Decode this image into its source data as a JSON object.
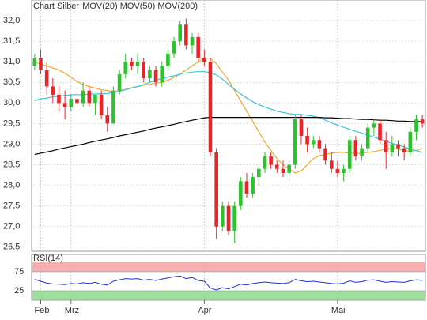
{
  "chart_data": [
    {
      "type": "candlestick",
      "title": "Chart Silber",
      "categories": [
        null,
        "Feb",
        null,
        null,
        null,
        null,
        "Mrz",
        null,
        null,
        null,
        null,
        null,
        null,
        null,
        null,
        null,
        null,
        null,
        null,
        null,
        null,
        null,
        null,
        null,
        null,
        null,
        null,
        null,
        "Apr",
        null,
        null,
        null,
        null,
        null,
        null,
        null,
        null,
        null,
        null,
        null,
        null,
        null,
        null,
        null,
        null,
        null,
        null,
        null,
        null,
        null,
        "Mai",
        null,
        null,
        null,
        null,
        null,
        null,
        null,
        null,
        null,
        null,
        null,
        null,
        null,
        null
      ],
      "open": [
        30.9,
        31.1,
        30.8,
        30.4,
        30.2,
        30.0,
        29.9,
        30.1,
        30.0,
        30.3,
        30.0,
        30.2,
        29.7,
        29.5,
        30.3,
        30.7,
        31.0,
        30.9,
        31.0,
        30.6,
        30.8,
        30.5,
        30.9,
        31.2,
        31.5,
        31.9,
        31.4,
        31.6,
        31.1,
        31.0,
        28.8,
        27.0,
        27.5,
        26.9,
        27.5,
        28.1,
        27.8,
        28.2,
        28.4,
        28.7,
        28.5,
        28.4,
        28.3,
        28.5,
        29.6,
        29.2,
        29.0,
        29.1,
        28.9,
        28.6,
        28.4,
        28.3,
        28.4,
        29.1,
        28.7,
        28.9,
        29.4,
        29.5,
        29.1,
        28.8,
        29.0,
        28.9,
        28.8,
        29.3,
        29.6
      ],
      "high": [
        31.2,
        31.3,
        31.0,
        30.6,
        30.4,
        30.3,
        30.2,
        30.3,
        30.5,
        30.4,
        30.2,
        30.3,
        29.9,
        30.4,
        30.8,
        31.2,
        31.1,
        31.2,
        31.1,
        30.9,
        30.9,
        31.0,
        31.3,
        31.6,
        32.0,
        32.05,
        31.7,
        31.7,
        31.3,
        31.1,
        28.9,
        27.6,
        27.6,
        27.6,
        28.2,
        28.3,
        28.3,
        28.5,
        28.8,
        28.8,
        28.6,
        28.6,
        28.6,
        29.7,
        29.7,
        29.4,
        29.2,
        29.2,
        29.0,
        28.8,
        28.6,
        28.5,
        29.2,
        29.2,
        29.0,
        29.5,
        29.6,
        29.6,
        29.3,
        29.2,
        29.1,
        29.0,
        29.4,
        29.7,
        29.7
      ],
      "low": [
        30.8,
        30.7,
        30.2,
        30.0,
        29.8,
        29.6,
        29.8,
        29.9,
        29.9,
        29.9,
        29.7,
        29.6,
        29.3,
        29.5,
        30.2,
        30.6,
        30.8,
        30.7,
        30.5,
        30.5,
        30.4,
        30.4,
        30.8,
        31.1,
        31.4,
        31.3,
        31.2,
        31.0,
        30.9,
        28.7,
        26.7,
        26.9,
        26.8,
        26.6,
        27.4,
        27.7,
        27.7,
        28.0,
        28.3,
        28.4,
        28.3,
        28.2,
        28.1,
        28.4,
        29.0,
        28.8,
        28.9,
        28.8,
        28.5,
        28.3,
        28.2,
        28.1,
        28.3,
        28.6,
        28.6,
        28.8,
        29.2,
        29.0,
        28.4,
        28.7,
        28.7,
        28.6,
        28.7,
        29.1,
        29.4
      ],
      "close": [
        31.1,
        30.8,
        30.4,
        30.2,
        30.0,
        29.9,
        30.1,
        30.0,
        30.3,
        30.0,
        30.2,
        29.7,
        29.5,
        30.3,
        30.7,
        31.0,
        30.9,
        31.0,
        30.6,
        30.8,
        30.5,
        30.9,
        31.2,
        31.5,
        31.9,
        31.4,
        31.6,
        31.1,
        31.0,
        28.8,
        27.0,
        27.5,
        26.9,
        27.5,
        28.1,
        27.8,
        28.2,
        28.4,
        28.7,
        28.5,
        28.4,
        28.3,
        28.5,
        29.6,
        29.2,
        29.0,
        29.1,
        28.9,
        28.6,
        28.4,
        28.3,
        28.4,
        29.1,
        28.7,
        28.9,
        29.4,
        29.5,
        29.1,
        28.8,
        29.0,
        28.9,
        28.8,
        29.3,
        29.6,
        29.5
      ],
      "up_color": "#2fc22f",
      "down_color": "#e8262a",
      "series": [
        {
          "name": "MOV(20)",
          "color": "#f2a92e",
          "values": [
            30.98,
            30.95,
            30.9,
            30.85,
            30.8,
            30.72,
            30.62,
            30.52,
            30.45,
            30.4,
            30.36,
            30.32,
            30.3,
            30.28,
            30.3,
            30.33,
            30.37,
            30.4,
            30.43,
            30.45,
            30.48,
            30.5,
            30.55,
            30.62,
            30.7,
            30.8,
            30.9,
            31.0,
            31.1,
            31.08,
            30.95,
            30.75,
            30.55,
            30.3,
            30.05,
            29.8,
            29.55,
            29.3,
            29.05,
            28.85,
            28.65,
            28.5,
            28.4,
            28.3,
            28.35,
            28.5,
            28.65,
            28.72,
            28.75,
            28.78,
            28.8,
            28.8,
            28.78,
            28.77,
            28.78,
            28.8,
            28.82,
            28.85,
            28.88,
            28.9,
            28.88,
            28.85,
            28.82,
            28.85,
            28.9
          ]
        },
        {
          "name": "MOV(50)",
          "color": "#3cc6dc",
          "values": [
            30.05,
            30.1,
            30.12,
            30.15,
            30.17,
            30.18,
            30.2,
            30.2,
            30.2,
            30.21,
            30.22,
            30.22,
            30.23,
            30.25,
            30.28,
            30.32,
            30.36,
            30.4,
            30.45,
            30.5,
            30.55,
            30.6,
            30.63,
            30.66,
            30.7,
            30.73,
            30.75,
            30.76,
            30.76,
            30.74,
            30.68,
            30.58,
            30.45,
            30.33,
            30.22,
            30.12,
            30.03,
            29.96,
            29.9,
            29.85,
            29.8,
            29.77,
            29.74,
            29.72,
            29.72,
            29.7,
            29.68,
            29.64,
            29.58,
            29.52,
            29.46,
            29.41,
            29.36,
            29.31,
            29.27,
            29.22,
            29.17,
            29.12,
            29.07,
            29.02,
            28.98,
            28.93,
            28.88,
            28.84,
            28.8
          ]
        },
        {
          "name": "MOV(200)",
          "color": "#000000",
          "values": [
            28.75,
            28.78,
            28.81,
            28.84,
            28.88,
            28.91,
            28.94,
            28.97,
            29.0,
            29.04,
            29.07,
            29.1,
            29.13,
            29.16,
            29.2,
            29.23,
            29.26,
            29.29,
            29.32,
            29.36,
            29.39,
            29.42,
            29.45,
            29.48,
            29.52,
            29.55,
            29.58,
            29.61,
            29.64,
            29.65,
            29.65,
            29.65,
            29.65,
            29.65,
            29.65,
            29.65,
            29.65,
            29.65,
            29.65,
            29.65,
            29.65,
            29.65,
            29.65,
            29.65,
            29.65,
            29.65,
            29.65,
            29.65,
            29.64,
            29.64,
            29.63,
            29.62,
            29.62,
            29.61,
            29.6,
            29.6,
            29.59,
            29.58,
            29.58,
            29.57,
            29.56,
            29.56,
            29.55,
            29.55,
            29.55
          ]
        }
      ],
      "ylim": [
        26.4,
        32.5
      ],
      "yticks": [
        {
          "value": 26.5,
          "label": "26,5"
        },
        {
          "value": 27.0,
          "label": "27,0"
        },
        {
          "value": 27.5,
          "label": "27,5"
        },
        {
          "value": 28.0,
          "label": "28,0"
        },
        {
          "value": 28.5,
          "label": "28,5"
        },
        {
          "value": 29.0,
          "label": "29,0"
        },
        {
          "value": 29.5,
          "label": "29,5"
        },
        {
          "value": 30.0,
          "label": "30,0"
        },
        {
          "value": 30.5,
          "label": "30,5"
        },
        {
          "value": 31.0,
          "label": "31,0"
        },
        {
          "value": 31.5,
          "label": "31,5"
        },
        {
          "value": 32.0,
          "label": "32,0"
        }
      ],
      "grid": true
    },
    {
      "type": "line",
      "title": "RSI(14)",
      "series": [
        {
          "color": "#2233cc",
          "values": [
            55,
            50,
            45,
            43,
            42,
            41,
            44,
            43,
            46,
            44,
            47,
            42,
            40,
            50,
            54,
            57,
            56,
            57,
            53,
            55,
            52,
            56,
            59,
            62,
            64,
            57,
            60,
            52,
            50,
            32,
            27,
            33,
            30,
            36,
            42,
            40,
            44,
            46,
            48,
            46,
            45,
            44,
            46,
            55,
            51,
            49,
            50,
            48,
            46,
            44,
            43,
            45,
            51,
            47,
            49,
            53,
            54,
            50,
            47,
            49,
            48,
            47,
            51,
            54,
            52
          ]
        }
      ],
      "ylim": [
        0,
        100
      ],
      "yticks": [
        25,
        75
      ],
      "bands": [
        {
          "from": 75,
          "to": 100,
          "color": "#f4a0a0"
        },
        {
          "from": 0,
          "to": 25,
          "color": "#8fd88f"
        }
      ]
    }
  ]
}
